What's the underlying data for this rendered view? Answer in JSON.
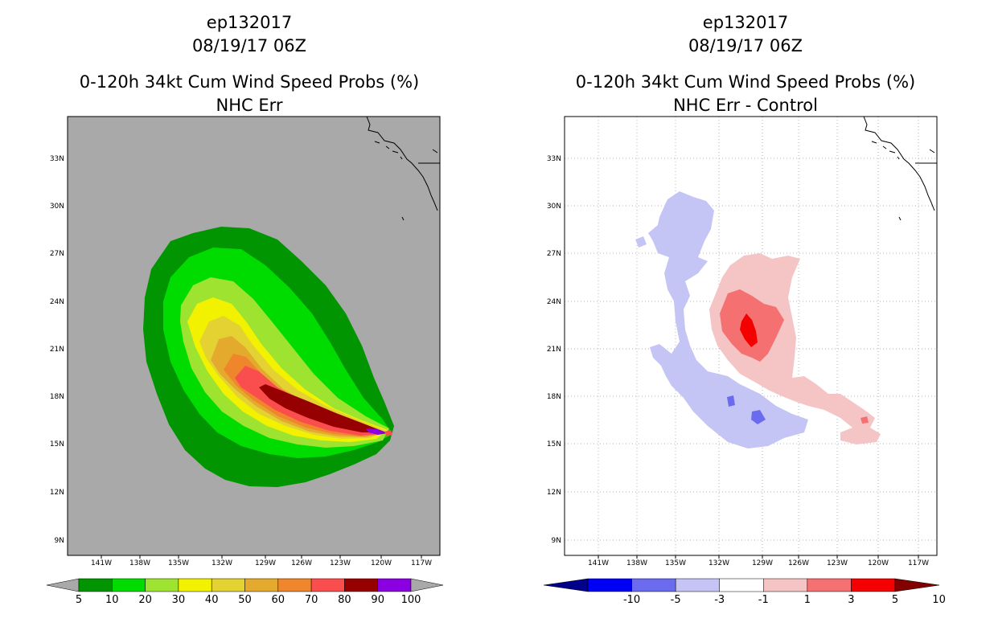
{
  "chart_data": [
    {
      "type": "contour-map",
      "title_line1": "ep132017",
      "title_line2": "08/19/17 06Z",
      "title_line3": "0-120h 34kt Cum Wind Speed Probs (%)",
      "title_line4": "NHC Err",
      "lon_ticks": [
        "141W",
        "138W",
        "135W",
        "132W",
        "129W",
        "126W",
        "123W",
        "120W",
        "117W"
      ],
      "lat_ticks": [
        "33N",
        "30N",
        "27N",
        "24N",
        "21N",
        "18N",
        "15N",
        "12N",
        "9N"
      ],
      "colorbar": {
        "labels": [
          "5",
          "10",
          "20",
          "30",
          "40",
          "50",
          "60",
          "70",
          "80",
          "90",
          "100"
        ],
        "colors": [
          "#019501",
          "#00dc00",
          "#9ee32f",
          "#f2f200",
          "#e4d233",
          "#e4aa2d",
          "#f0862c",
          "#fa4e4e",
          "#960000",
          "#8b00e0"
        ]
      },
      "background_color": "#a9a9a9"
    },
    {
      "type": "contour-map",
      "title_line1": "ep132017",
      "title_line2": "08/19/17 06Z",
      "title_line3": "0-120h 34kt Cum Wind Speed Probs (%)",
      "title_line4": "NHC Err - Control",
      "lon_ticks": [
        "141W",
        "138W",
        "135W",
        "132W",
        "129W",
        "126W",
        "123W",
        "120W",
        "117W"
      ],
      "lat_ticks": [
        "33N",
        "30N",
        "27N",
        "24N",
        "21N",
        "18N",
        "15N",
        "12N",
        "9N"
      ],
      "colorbar": {
        "labels": [
          "-10",
          "-5",
          "-3",
          "-1",
          "1",
          "3",
          "5",
          "10"
        ],
        "colors": [
          "#00008b",
          "#0000f5",
          "#6b6bf0",
          "#c5c5f5",
          "#ffffff",
          "#f5c5c5",
          "#f57070",
          "#f50000",
          "#820000"
        ]
      }
    }
  ]
}
